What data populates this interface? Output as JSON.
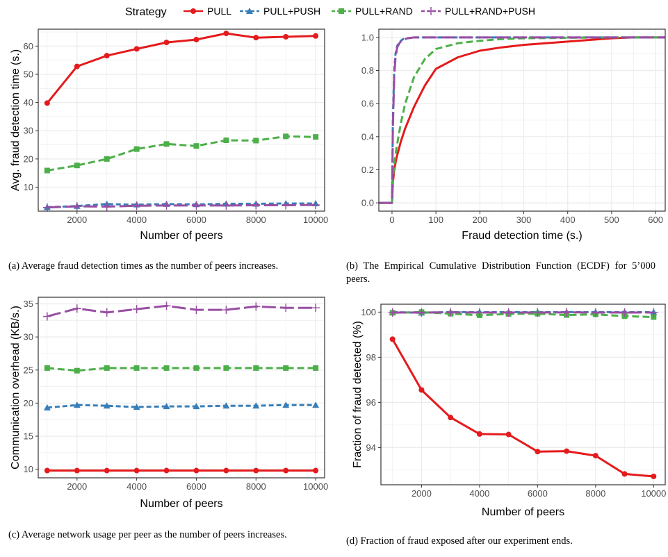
{
  "legend": {
    "title": "Strategy",
    "entries": [
      "PULL",
      "PULL+PUSH",
      "PULL+RAND",
      "PULL+RAND+PUSH"
    ]
  },
  "colors": {
    "PULL": "#E41A1C",
    "PULL+PUSH": "#377EB8",
    "PULL+RAND": "#4DAF4A",
    "PULL+RAND+PUSH": "#984EA3",
    "grid": "#EBEBEB",
    "frame": "#333333"
  },
  "captions": {
    "a": "(a) Average fraud detection times as the number of peers increases.",
    "b": "(b) The Empirical Cumulative Distribution Function (ECDF) for 5’000 peers.",
    "c": "(c) Average network usage per peer as the number of peers increases.",
    "d": "(d) Fraction of fraud exposed after our experiment ends."
  },
  "chart_data": [
    {
      "id": "a",
      "type": "line",
      "xlabel": "Number of peers",
      "ylabel": "Avg. fraud detection time (s.)",
      "xlim": [
        700,
        10300
      ],
      "ylim": [
        1.5,
        66
      ],
      "xticks": [
        2000,
        4000,
        6000,
        8000,
        10000
      ],
      "yticks": [
        10,
        20,
        30,
        40,
        50,
        60
      ],
      "x": [
        1000,
        2000,
        3000,
        4000,
        5000,
        6000,
        7000,
        8000,
        9000,
        10000
      ],
      "series": [
        {
          "name": "PULL",
          "values": [
            39.8,
            52.8,
            56.6,
            59.0,
            61.3,
            62.3,
            64.5,
            63.0,
            63.3,
            63.6
          ]
        },
        {
          "name": "PULL+PUSH",
          "values": [
            2.9,
            3.3,
            4.0,
            3.8,
            4.0,
            3.9,
            4.1,
            4.1,
            4.2,
            4.2
          ]
        },
        {
          "name": "PULL+RAND",
          "values": [
            15.9,
            17.7,
            20.0,
            23.5,
            25.3,
            24.6,
            26.6,
            26.5,
            28.0,
            27.8
          ]
        },
        {
          "name": "PULL+RAND+PUSH",
          "values": [
            2.8,
            3.2,
            3.1,
            3.4,
            3.5,
            3.5,
            3.5,
            3.6,
            3.6,
            3.7
          ]
        }
      ]
    },
    {
      "id": "b",
      "type": "line",
      "xlabel": "Fraud detection time (s.)",
      "ylabel": "",
      "xlim": [
        -30,
        622
      ],
      "ylim": [
        -0.05,
        1.05
      ],
      "xticks": [
        0,
        100,
        200,
        300,
        400,
        500,
        600
      ],
      "yticks": [
        0.0,
        0.2,
        0.4,
        0.6,
        0.8,
        1.0
      ],
      "ytick_labels": [
        "0.0",
        "0.2",
        "0.4",
        "0.6",
        "0.8",
        "1.0"
      ],
      "series": [
        {
          "name": "PULL",
          "x": [
            -30,
            0,
            2,
            5,
            10,
            20,
            30,
            50,
            75,
            100,
            150,
            200,
            250,
            300,
            350,
            400,
            450,
            500,
            550,
            622
          ],
          "values": [
            0,
            0,
            0.12,
            0.2,
            0.27,
            0.37,
            0.45,
            0.58,
            0.71,
            0.81,
            0.88,
            0.92,
            0.94,
            0.955,
            0.965,
            0.975,
            0.985,
            0.995,
            1.0,
            1.0
          ]
        },
        {
          "name": "PULL+PUSH",
          "x": [
            -30,
            0,
            2,
            5,
            8,
            12,
            18,
            25,
            35,
            50,
            70,
            622
          ],
          "values": [
            0,
            0,
            0.5,
            0.8,
            0.9,
            0.95,
            0.975,
            0.99,
            0.995,
            1.0,
            1.0,
            1.0
          ]
        },
        {
          "name": "PULL+RAND",
          "x": [
            -30,
            0,
            2,
            5,
            10,
            20,
            30,
            50,
            75,
            100,
            150,
            200,
            250,
            300,
            400,
            500,
            622
          ],
          "values": [
            0,
            0,
            0.14,
            0.23,
            0.33,
            0.48,
            0.6,
            0.76,
            0.87,
            0.93,
            0.965,
            0.98,
            0.99,
            0.995,
            0.998,
            1.0,
            1.0
          ]
        },
        {
          "name": "PULL+RAND+PUSH",
          "x": [
            -30,
            0,
            2,
            5,
            8,
            12,
            18,
            25,
            35,
            50,
            70,
            622
          ],
          "values": [
            0,
            0,
            0.45,
            0.76,
            0.88,
            0.94,
            0.97,
            0.985,
            0.995,
            1.0,
            1.0,
            1.0
          ]
        }
      ]
    },
    {
      "id": "c",
      "type": "line",
      "xlabel": "Number of peers",
      "ylabel": "Communication overhead (KB/s.)",
      "xlim": [
        700,
        10300
      ],
      "ylim": [
        8.7,
        36.0
      ],
      "xticks": [
        2000,
        4000,
        6000,
        8000,
        10000
      ],
      "yticks": [
        10,
        15,
        20,
        25,
        30,
        35
      ],
      "x": [
        1000,
        2000,
        3000,
        4000,
        5000,
        6000,
        7000,
        8000,
        9000,
        10000
      ],
      "series": [
        {
          "name": "PULL",
          "values": [
            9.8,
            9.8,
            9.8,
            9.8,
            9.8,
            9.8,
            9.8,
            9.8,
            9.8,
            9.8
          ]
        },
        {
          "name": "PULL+PUSH",
          "values": [
            19.3,
            19.7,
            19.6,
            19.4,
            19.5,
            19.5,
            19.6,
            19.6,
            19.7,
            19.7
          ]
        },
        {
          "name": "PULL+RAND",
          "values": [
            25.3,
            24.9,
            25.3,
            25.3,
            25.3,
            25.3,
            25.3,
            25.3,
            25.3,
            25.3
          ]
        },
        {
          "name": "PULL+RAND+PUSH",
          "values": [
            33.1,
            34.3,
            33.7,
            34.2,
            34.7,
            34.1,
            34.1,
            34.6,
            34.4,
            34.4
          ]
        }
      ]
    },
    {
      "id": "d",
      "type": "line",
      "xlabel": "Number of peers",
      "ylabel": "Fraction of fraud detected (%)",
      "xlim": [
        600,
        10400
      ],
      "ylim": [
        92.35,
        100.35
      ],
      "xticks": [
        2000,
        4000,
        6000,
        8000,
        10000
      ],
      "yticks": [
        94,
        96,
        98,
        100
      ],
      "x": [
        1000,
        2000,
        3000,
        4000,
        5000,
        6000,
        7000,
        8000,
        9000,
        10000
      ],
      "series": [
        {
          "name": "PULL",
          "values": [
            98.8,
            96.55,
            95.33,
            94.6,
            94.58,
            93.82,
            93.84,
            93.64,
            92.83,
            92.72
          ]
        },
        {
          "name": "PULL+PUSH",
          "values": [
            100.0,
            99.97,
            100.0,
            100.0,
            100.0,
            100.0,
            100.0,
            100.0,
            100.0,
            100.0
          ]
        },
        {
          "name": "PULL+RAND",
          "values": [
            99.97,
            100.0,
            99.93,
            99.86,
            99.92,
            99.93,
            99.87,
            99.9,
            99.82,
            99.78
          ]
        },
        {
          "name": "PULL+RAND+PUSH",
          "values": [
            99.98,
            99.98,
            99.99,
            99.98,
            99.98,
            99.98,
            99.99,
            99.98,
            99.98,
            99.98
          ]
        }
      ]
    }
  ]
}
